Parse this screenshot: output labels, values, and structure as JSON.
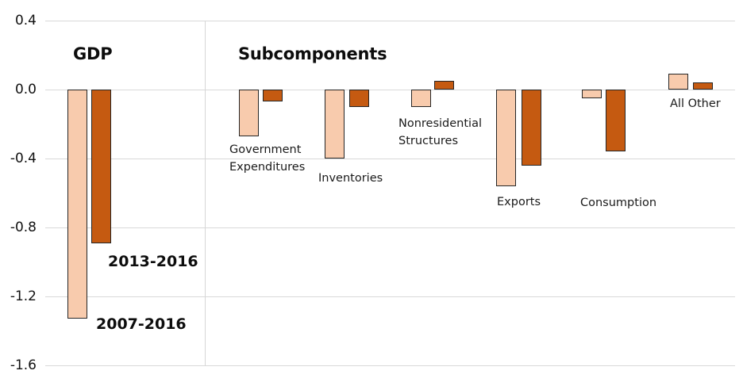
{
  "chart_data": {
    "type": "bar",
    "section_titles": {
      "left": "GDP",
      "right": "Subcomponents"
    },
    "categories": [
      "GDP",
      "Government Expenditures",
      "Inventories",
      "Nonresidential Structures",
      "Exports",
      "Consumption",
      "All Other"
    ],
    "series": [
      {
        "name": "2007-2016",
        "color": "#F8CBAD",
        "values": [
          -1.33,
          -0.27,
          -0.4,
          -0.1,
          -0.56,
          -0.05,
          0.09
        ]
      },
      {
        "name": "2013-2016",
        "color": "#C55A11",
        "values": [
          -0.89,
          -0.07,
          -0.1,
          0.05,
          -0.44,
          -0.36,
          0.04
        ]
      }
    ],
    "ylim": [
      -1.6,
      0.4
    ],
    "yticks": [
      0.4,
      0.0,
      -0.4,
      -0.8,
      -1.2,
      -1.6
    ],
    "ytick_labels": [
      "0.4",
      "0.0",
      "-0.4",
      "-0.8",
      "-1.2",
      "-1.6"
    ],
    "grid": true,
    "legend_position": "inline-annotations",
    "colors": {
      "light_bar": "#F8CBAD",
      "dark_bar": "#C55A11",
      "bar_border": "#262626",
      "gridline": "#D9D9D9",
      "text": "#111111"
    }
  }
}
